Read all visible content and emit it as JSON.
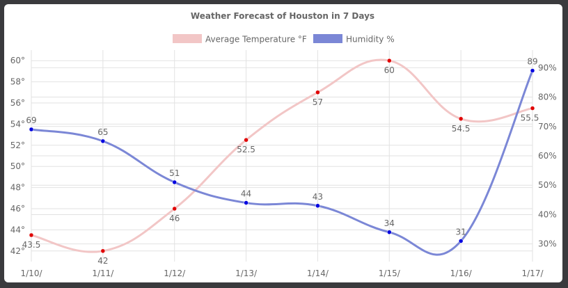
{
  "chart_data": {
    "type": "line",
    "title": "Weather Forecast of Houston in 7 Days",
    "x": [
      "1/10/",
      "1/11/",
      "1/12/",
      "1/13/",
      "1/14/",
      "1/15/",
      "1/16/",
      "1/17/"
    ],
    "series": [
      {
        "name": "Average Temperature °F",
        "axis": "left",
        "color": "#f2c6c6",
        "marker_color": "#e00000",
        "values": [
          43.5,
          42,
          46,
          52.5,
          57,
          60,
          54.5,
          55.5
        ],
        "labels": [
          "43.5",
          "42",
          "46",
          "52.5",
          "57",
          "60",
          "54.5",
          "55.5"
        ]
      },
      {
        "name": "Humidity %",
        "axis": "right",
        "color": "#7b87d6",
        "marker_color": "#0000e0",
        "values": [
          69,
          65,
          51,
          44,
          43,
          34,
          31,
          89
        ],
        "labels": [
          "69",
          "65",
          "51",
          "44",
          "43",
          "34",
          "31",
          "89"
        ]
      }
    ],
    "y_left": {
      "ylim": [
        41,
        61
      ],
      "ticks": [
        42,
        44,
        46,
        48,
        50,
        52,
        54,
        56,
        58,
        60
      ],
      "tick_labels": [
        "42°",
        "44°",
        "46°",
        "48°",
        "50°",
        "52°",
        "54°",
        "56°",
        "58°",
        "60°"
      ]
    },
    "y_right": {
      "ylim": [
        24,
        96
      ],
      "ticks": [
        30,
        40,
        50,
        60,
        70,
        80,
        90
      ],
      "tick_labels": [
        "30%",
        "40%",
        "50%",
        "60%",
        "70%",
        "80%",
        "90%"
      ]
    },
    "grid": true,
    "legend_position": "top"
  }
}
